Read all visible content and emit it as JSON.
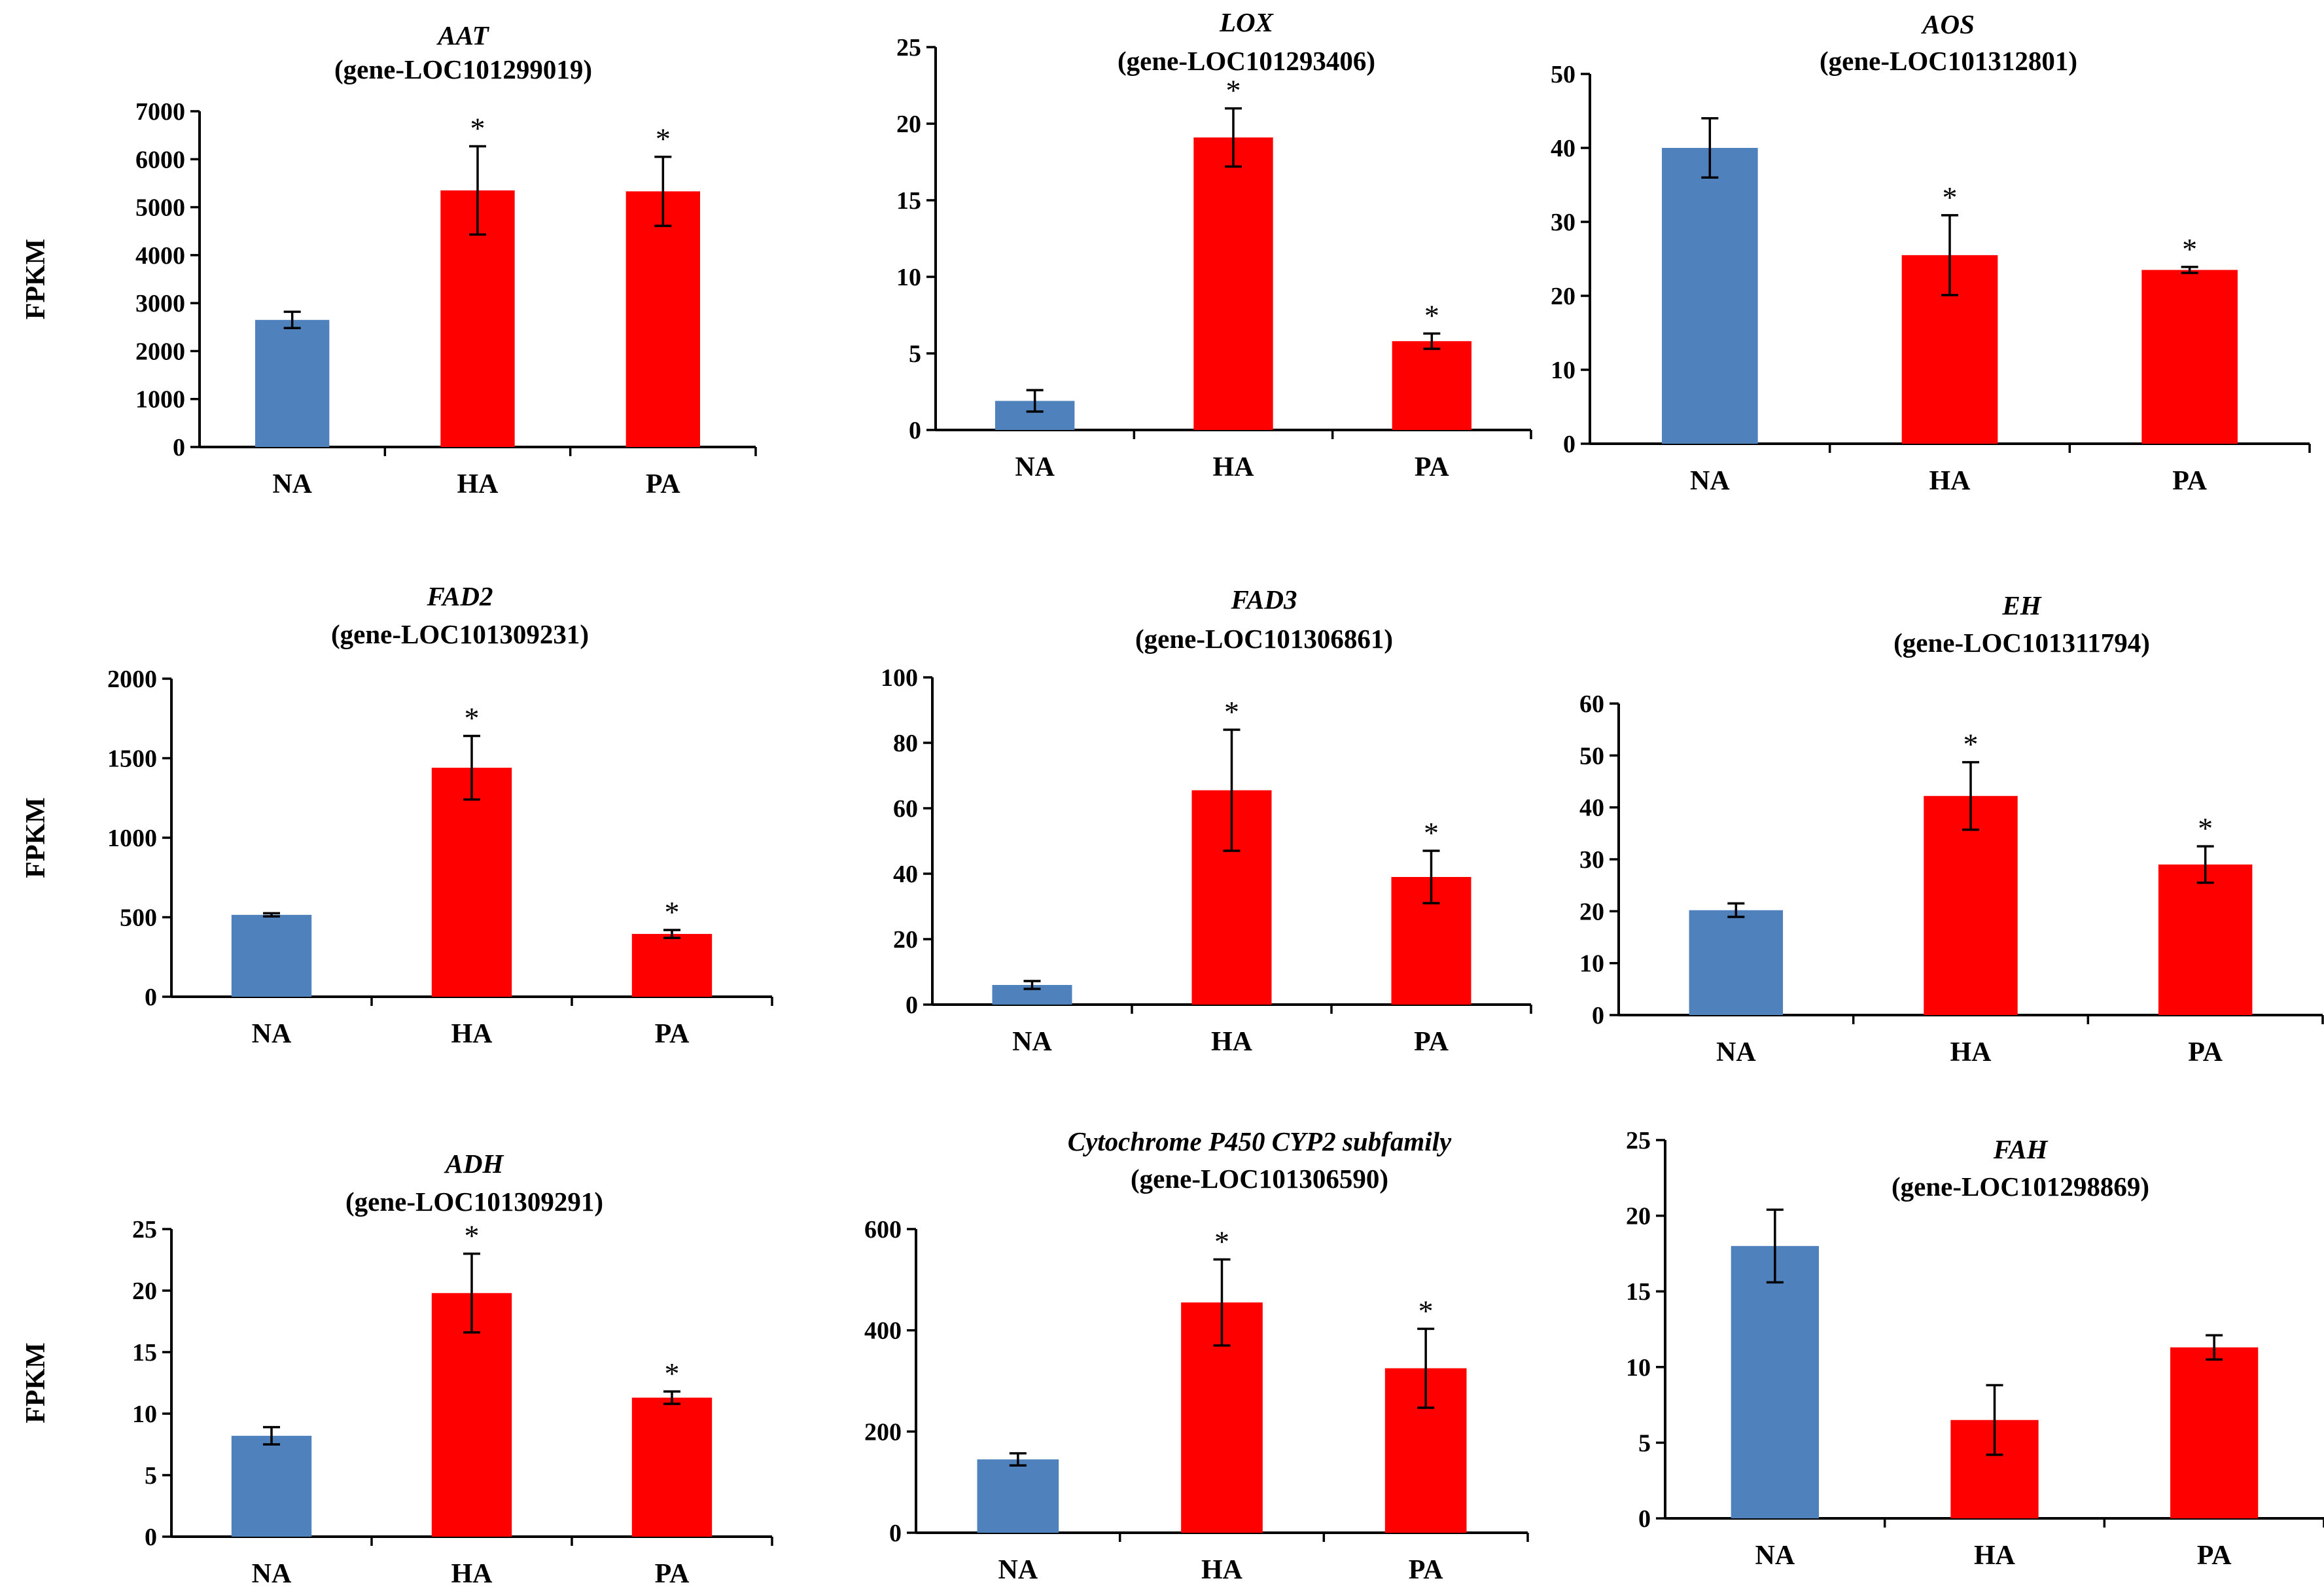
{
  "colors": {
    "control": "#4f81bd",
    "treatment": "#ff0000",
    "axis": "#000000"
  },
  "chart_data": [
    {
      "type": "bar",
      "title": "AAT",
      "subtitle": "(gene-LOC101299019)",
      "xlabel": "",
      "ylabel": "FPKM",
      "categories": [
        "NA",
        "HA",
        "PA"
      ],
      "values": [
        2650,
        5350,
        5330
      ],
      "errors": [
        170,
        920,
        720
      ],
      "significant": [
        "",
        "*",
        "*"
      ],
      "ylim": [
        0,
        7000
      ],
      "yticks": [
        "0",
        "1000",
        "2000",
        "3000",
        "4000",
        "5000",
        "6000",
        "7000"
      ]
    },
    {
      "type": "bar",
      "title": "LOX",
      "subtitle": "(gene-LOC101293406)",
      "xlabel": "",
      "ylabel": "",
      "categories": [
        "NA",
        "HA",
        "PA"
      ],
      "values": [
        1.9,
        19.1,
        5.8
      ],
      "errors": [
        0.7,
        1.9,
        0.5
      ],
      "significant": [
        "",
        "*",
        "*"
      ],
      "ylim": [
        0,
        25
      ],
      "yticks": [
        "0",
        "5",
        "10",
        "15",
        "20",
        "25"
      ]
    },
    {
      "type": "bar",
      "title": "AOS",
      "subtitle": "(gene-LOC101312801)",
      "xlabel": "",
      "ylabel": "",
      "categories": [
        "NA",
        "HA",
        "PA"
      ],
      "values": [
        40,
        25.5,
        23.5
      ],
      "errors": [
        4,
        5.4,
        0.4
      ],
      "significant": [
        "",
        "*",
        "*"
      ],
      "ylim": [
        0,
        50
      ],
      "yticks": [
        "0",
        "10",
        "20",
        "30",
        "40",
        "50"
      ]
    },
    {
      "type": "bar",
      "title": "FAD2",
      "subtitle": "(gene-LOC101309231)",
      "xlabel": "",
      "ylabel": "FPKM",
      "categories": [
        "NA",
        "HA",
        "PA"
      ],
      "values": [
        515,
        1440,
        395
      ],
      "errors": [
        10,
        200,
        25
      ],
      "significant": [
        "",
        "*",
        "*"
      ],
      "ylim": [
        0,
        2000
      ],
      "yticks": [
        "0",
        "500",
        "1000",
        "1500",
        "2000"
      ]
    },
    {
      "type": "bar",
      "title": "FAD3",
      "subtitle": "(gene-LOC101306861)",
      "xlabel": "",
      "ylabel": "",
      "categories": [
        "NA",
        "HA",
        "PA"
      ],
      "values": [
        6,
        65.5,
        39
      ],
      "errors": [
        1.2,
        18.5,
        8
      ],
      "significant": [
        "",
        "*",
        "*"
      ],
      "ylim": [
        0,
        100
      ],
      "yticks": [
        "0",
        "20",
        "40",
        "60",
        "80",
        "100"
      ]
    },
    {
      "type": "bar",
      "title": "EH",
      "subtitle": "(gene-LOC101311794)",
      "xlabel": "",
      "ylabel": "",
      "categories": [
        "NA",
        "HA",
        "PA"
      ],
      "values": [
        20.2,
        42.2,
        29
      ],
      "errors": [
        1.3,
        6.5,
        3.5
      ],
      "significant": [
        "",
        "*",
        "*"
      ],
      "ylim": [
        0,
        60
      ],
      "yticks": [
        "0",
        "10",
        "20",
        "30",
        "40",
        "50",
        "60"
      ]
    },
    {
      "type": "bar",
      "title": "ADH",
      "subtitle": "(gene-LOC101309291)",
      "xlabel": "",
      "ylabel": "FPKM",
      "categories": [
        "NA",
        "HA",
        "PA"
      ],
      "values": [
        8.2,
        19.8,
        11.3
      ],
      "errors": [
        0.7,
        3.2,
        0.5
      ],
      "significant": [
        "",
        "*",
        "*"
      ],
      "ylim": [
        0,
        25
      ],
      "yticks": [
        "0",
        "5",
        "10",
        "15",
        "20",
        "25"
      ]
    },
    {
      "type": "bar",
      "title": "Cytochrome P450 CYP2 subfamily",
      "subtitle": "(gene-LOC101306590)",
      "xlabel": "",
      "ylabel": "",
      "categories": [
        "NA",
        "HA",
        "PA"
      ],
      "values": [
        145,
        455,
        325
      ],
      "errors": [
        12,
        85,
        78
      ],
      "significant": [
        "",
        "*",
        "*"
      ],
      "ylim": [
        0,
        600
      ],
      "yticks": [
        "0",
        "200",
        "400",
        "600"
      ]
    },
    {
      "type": "bar",
      "title": "FAH",
      "subtitle": "(gene-LOC101298869)",
      "xlabel": "",
      "ylabel": "",
      "categories": [
        "NA",
        "HA",
        "PA"
      ],
      "values": [
        18,
        6.5,
        11.3
      ],
      "errors": [
        2.4,
        2.3,
        0.8
      ],
      "significant": [
        "",
        "",
        ""
      ],
      "ylim": [
        0,
        25
      ],
      "yticks": [
        "0",
        "5",
        "10",
        "15",
        "20",
        "25"
      ]
    }
  ]
}
